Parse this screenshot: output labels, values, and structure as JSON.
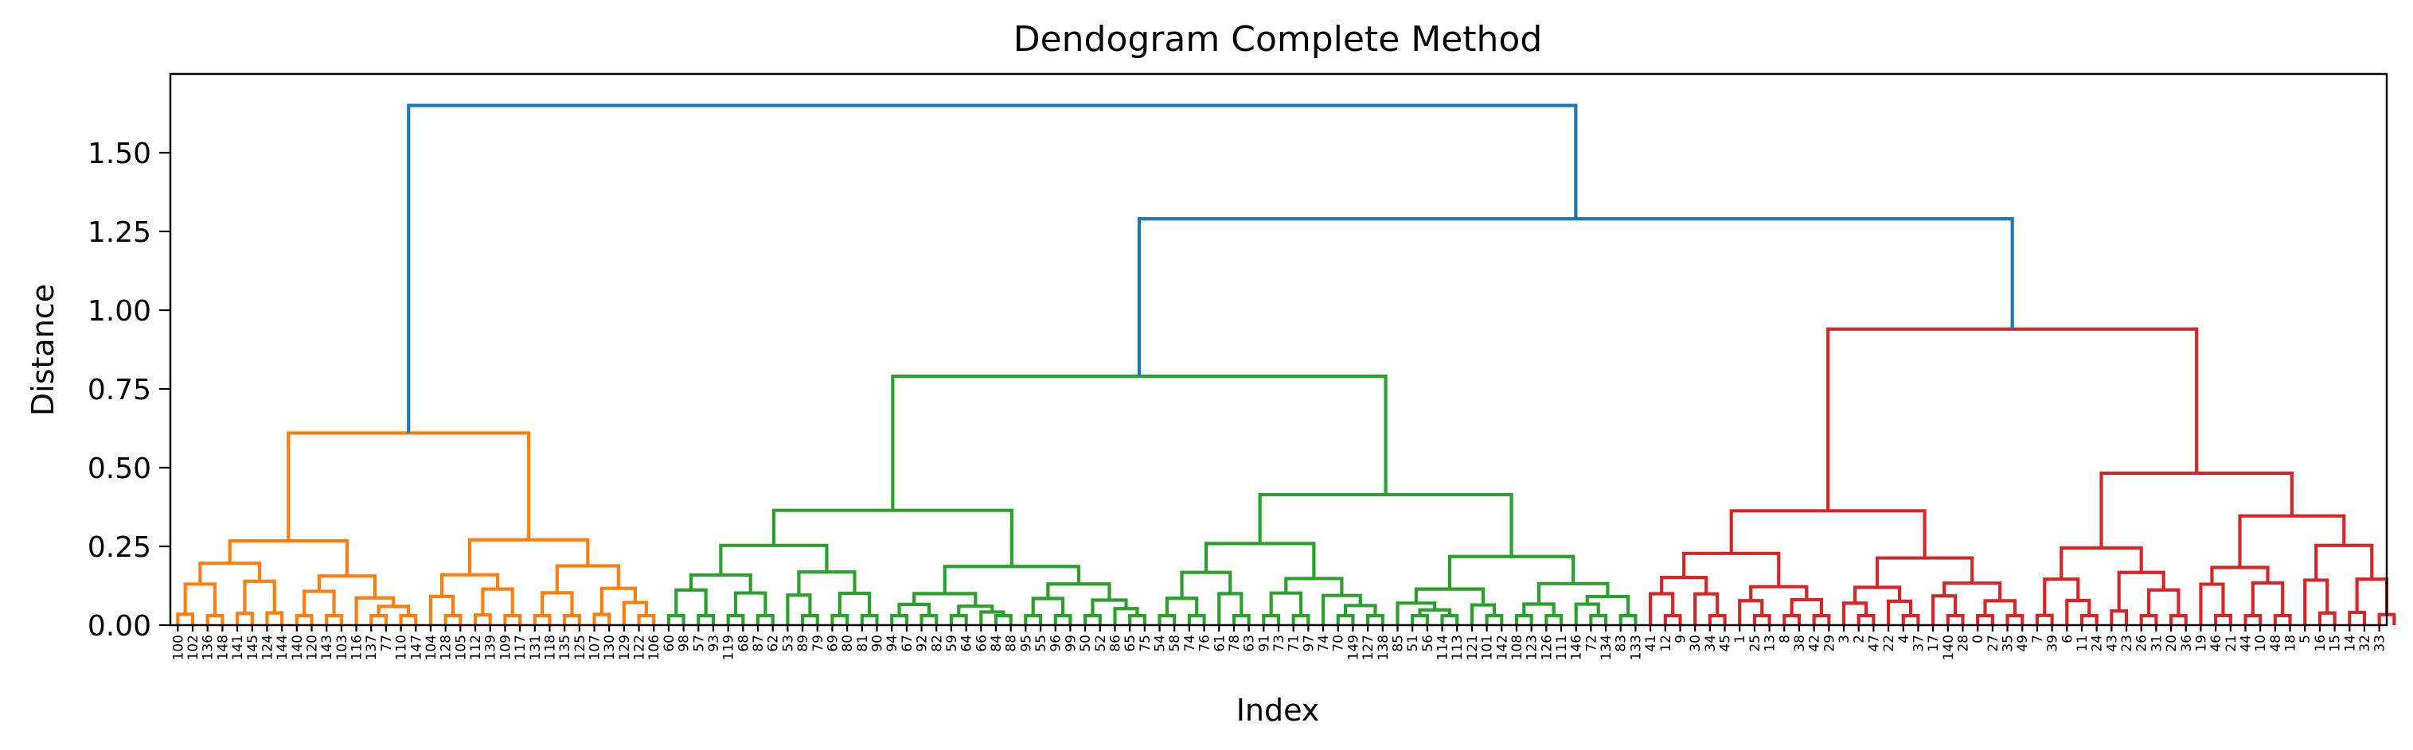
{
  "chart_data": {
    "type": "dendrogram",
    "title": "Dendogram Complete Method",
    "xlabel": "Index",
    "ylabel": "Distance",
    "ylim": [
      0,
      1.75
    ],
    "yticks": [
      "0.00",
      "0.25",
      "0.50",
      "0.75",
      "1.00",
      "1.25",
      "1.50"
    ],
    "grid": false,
    "colors": {
      "root": "#1f77b4",
      "cluster_orange": "#ff7f0e",
      "cluster_green": "#2ca02c",
      "cluster_red": "#d62728"
    },
    "leaves": [
      "100",
      "102",
      "136",
      "148",
      "141",
      "145",
      "124",
      "144",
      "140",
      "120",
      "143",
      "103",
      "116",
      "137",
      "77",
      "110",
      "147",
      "104",
      "128",
      "105",
      "112",
      "139",
      "109",
      "117",
      "131",
      "118",
      "135",
      "125",
      "107",
      "130",
      "129",
      "122",
      "106",
      "60",
      "98",
      "57",
      "93",
      "119",
      "68",
      "87",
      "62",
      "53",
      "89",
      "79",
      "69",
      "80",
      "81",
      "90",
      "94",
      "67",
      "92",
      "82",
      "59",
      "64",
      "66",
      "84",
      "88",
      "95",
      "55",
      "96",
      "99",
      "50",
      "52",
      "86",
      "65",
      "75",
      "54",
      "58",
      "74",
      "76",
      "61",
      "78",
      "63",
      "91",
      "73",
      "71",
      "97",
      "74",
      "70",
      "149",
      "127",
      "138",
      "85",
      "51",
      "56",
      "114",
      "113",
      "121",
      "101",
      "142",
      "108",
      "123",
      "126",
      "111",
      "146",
      "72",
      "134",
      "83",
      "133",
      "41",
      "12",
      "9",
      "30",
      "34",
      "45",
      "1",
      "25",
      "13",
      "8",
      "38",
      "42",
      "29",
      "3",
      "2",
      "47",
      "22",
      "4",
      "37",
      "17",
      "140",
      "28",
      "0",
      "27",
      "35",
      "49",
      "7",
      "39",
      "6",
      "11",
      "24",
      "43",
      "23",
      "26",
      "31",
      "20",
      "36",
      "19",
      "46",
      "21",
      "44",
      "10",
      "48",
      "18",
      "5",
      "16",
      "15",
      "14",
      "32",
      "33"
    ],
    "merges": [
      {
        "leaves": [
          0,
          32
        ],
        "height": 0.61,
        "color": "cluster_orange"
      },
      {
        "leaves": [
          33,
          98
        ],
        "height": 0.79,
        "color": "cluster_green"
      },
      {
        "leaves": [
          99,
          149
        ],
        "height": 0.94,
        "color": "cluster_red"
      },
      {
        "leaves": [
          33,
          149
        ],
        "height": 1.29,
        "color": "root"
      },
      {
        "leaves": [
          0,
          149
        ],
        "height": 1.65,
        "color": "root"
      }
    ]
  }
}
